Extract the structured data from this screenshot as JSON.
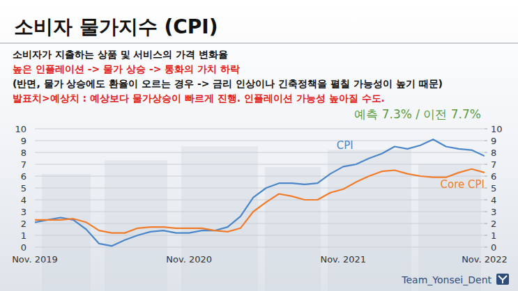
{
  "chart_data": {
    "type": "line",
    "title": "소비자 물가지수 (CPI)",
    "annotations": [
      {
        "text": "소비자가 지출하는 상품 및 서비스의 가격 변화율",
        "color": "#111111"
      },
      {
        "text": "높은 인플레이션 -> 물가 상승 -> 통화의 가치 하락",
        "color": "#e0201b"
      },
      {
        "text": "(반면, 물가 상승에도 환율이 오르는 경우 -> 금리 인상이나 긴축정책을 펼칠 가능성이 높기 때문)",
        "color": "#111111"
      },
      {
        "text": "발표치>예상치 : 예상보다 물가상승이 빠르게 진행. 인플레이션 가능성 높아질 수도.",
        "color": "#e0201b"
      },
      {
        "text": "예측 7.3% / 이전 7.7%",
        "color": "#5a9a3c"
      }
    ],
    "source": "Team_Yonsei_Dent",
    "categories": [
      "Nov. 2019",
      null,
      null,
      null,
      null,
      null,
      null,
      null,
      null,
      null,
      null,
      null,
      "Nov. 2020",
      null,
      null,
      null,
      null,
      null,
      null,
      null,
      null,
      null,
      null,
      null,
      "Nov. 2021",
      null,
      null,
      null,
      null,
      null,
      null,
      null,
      null,
      null,
      null,
      "Nov. 2022"
    ],
    "series": [
      {
        "name": "CPI",
        "color": "#4a86c8",
        "values": [
          2.1,
          2.3,
          2.5,
          2.3,
          1.5,
          0.3,
          0.1,
          0.6,
          1.0,
          1.3,
          1.4,
          1.2,
          1.2,
          1.4,
          1.4,
          1.7,
          2.6,
          4.2,
          5.0,
          5.4,
          5.4,
          5.3,
          5.4,
          6.2,
          6.8,
          7.0,
          7.5,
          7.9,
          8.5,
          8.3,
          8.6,
          9.1,
          8.5,
          8.3,
          8.2,
          7.7
        ]
      },
      {
        "name": "Core CPI",
        "color": "#f07c2a",
        "values": [
          2.3,
          2.3,
          2.3,
          2.4,
          2.1,
          1.4,
          1.2,
          1.2,
          1.6,
          1.7,
          1.7,
          1.6,
          1.6,
          1.6,
          1.4,
          1.3,
          1.6,
          3.0,
          3.8,
          4.5,
          4.3,
          4.0,
          4.0,
          4.6,
          4.9,
          5.5,
          6.0,
          6.4,
          6.5,
          6.2,
          6.0,
          5.9,
          5.9,
          6.3,
          6.6,
          6.3
        ]
      }
    ],
    "ylim": [
      0,
      10
    ],
    "yticks": [
      0,
      1,
      2,
      3,
      4,
      5,
      6,
      7,
      8,
      9,
      10
    ],
    "y2lim": [
      0,
      10
    ],
    "y2ticks": [
      0,
      1,
      2,
      3,
      4,
      5,
      6,
      7,
      8,
      9,
      10
    ],
    "grid": true
  }
}
